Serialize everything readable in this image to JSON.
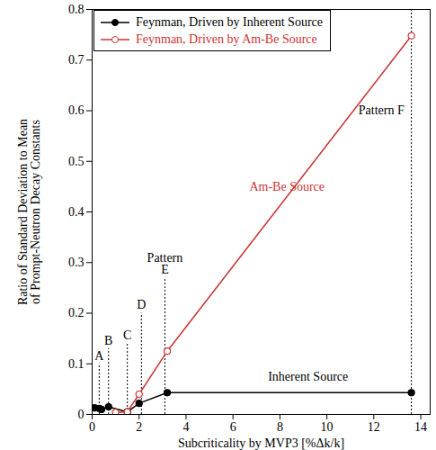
{
  "chart_data": {
    "type": "line",
    "x_label": "Subcriticality by MVP3 [%Δk/k]",
    "y_label": "Ratio of Standard Deviation to Mean\nof Prompt-Neutron Decay Constants",
    "xlim": [
      0,
      14.4
    ],
    "xticks": [
      0,
      2,
      4,
      6,
      8,
      10,
      12,
      14
    ],
    "ylim": [
      0,
      0.8
    ],
    "yticks": [
      0,
      0.1,
      0.2,
      0.3,
      0.4,
      0.5,
      0.6,
      0.7,
      0.8
    ],
    "legend": "top-left",
    "series": [
      {
        "name": "Feynman, Driven by Inherent Source",
        "color": "#000000",
        "marker": "circle",
        "x": [
          0.1,
          0.3,
          0.4,
          0.7,
          1.5,
          2.0,
          3.2,
          13.6
        ],
        "values": [
          0.013,
          0.012,
          0.01,
          0.015,
          0.005,
          0.022,
          0.043,
          0.043
        ]
      },
      {
        "name": "Feynman, Driven by Am-Be Source",
        "color": "#cc3333",
        "marker": "circle-open",
        "x": [
          1.0,
          1.5,
          2.0,
          3.2,
          13.6
        ],
        "values": [
          0.004,
          0.005,
          0.04,
          0.125,
          0.748
        ]
      }
    ],
    "patterns": [
      {
        "x": 0.3,
        "top": 0.1,
        "label": "A"
      },
      {
        "x": 0.7,
        "top": 0.13,
        "label": "B"
      },
      {
        "x": 1.5,
        "top": 0.14,
        "label": "C"
      },
      {
        "x": 2.1,
        "top": 0.2,
        "label": "D"
      },
      {
        "x": 3.1,
        "top": 0.27,
        "label": "E"
      },
      {
        "x": 13.6,
        "top": 0.8
      }
    ],
    "annotations": [
      {
        "text": "Pattern",
        "x": 3.1,
        "y": 0.31,
        "color": "#000000"
      },
      {
        "text": "Pattern F",
        "x": 13.3,
        "y": 0.6,
        "color": "#000000",
        "anchor": "end"
      },
      {
        "text": "Am-Be Source",
        "x": 8.3,
        "y": 0.45,
        "color": "#cc3333"
      },
      {
        "text": "Inherent Source",
        "x": 9.2,
        "y": 0.075,
        "color": "#000000"
      }
    ]
  }
}
